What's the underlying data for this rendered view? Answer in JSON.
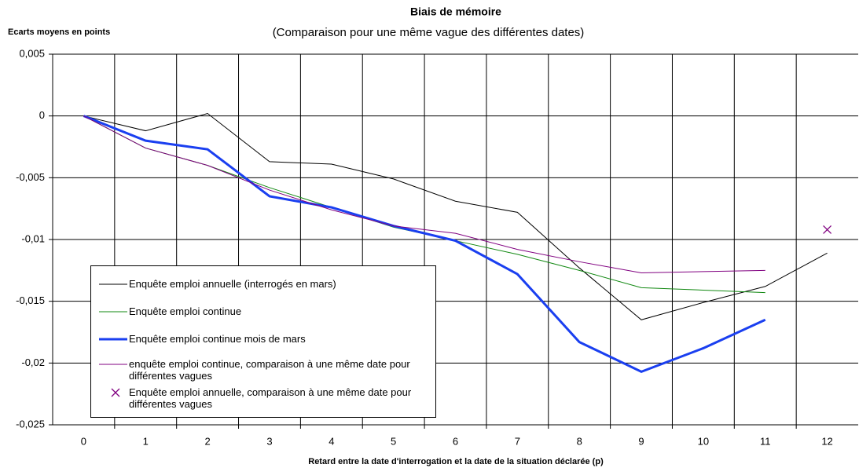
{
  "chart_data": {
    "type": "line",
    "title": "Biais de mémoire",
    "subtitle": "(Comparaison pour une même vague des différentes dates)",
    "y_label": "Ecarts moyens en points",
    "x_label": "Retard entre la date d'interrogation et la date de la situation déclarée (p)",
    "categories": [
      "0",
      "1",
      "2",
      "3",
      "4",
      "5",
      "6",
      "7",
      "8",
      "9",
      "10",
      "11",
      "12"
    ],
    "ylim": [
      -0.025,
      0.005
    ],
    "yticks": [
      {
        "value": -0.025,
        "label": "-0,025"
      },
      {
        "value": -0.02,
        "label": "-0,02"
      },
      {
        "value": -0.015,
        "label": "-0,015"
      },
      {
        "value": -0.01,
        "label": "-0,01"
      },
      {
        "value": -0.005,
        "label": "-0,005"
      },
      0,
      {
        "value": 0.005,
        "label": "0,005"
      }
    ],
    "grid": true,
    "series": [
      {
        "name": "Enquête emploi annuelle (interrogés en mars)",
        "color": "#000000",
        "width": 1,
        "values": [
          0,
          -0.0012,
          0.0002,
          -0.0037,
          -0.0039,
          -0.0051,
          -0.0069,
          -0.0078,
          -0.0123,
          -0.0165,
          -0.0151,
          -0.0138,
          -0.0111
        ]
      },
      {
        "name": "Enquête emploi continue",
        "color": "#118811",
        "width": 1,
        "values": [
          0,
          -0.0026,
          -0.004,
          -0.0058,
          -0.0074,
          -0.009,
          -0.0101,
          -0.0112,
          -0.0125,
          -0.0139,
          -0.0141,
          -0.0143,
          null
        ]
      },
      {
        "name": "Enquête emploi continue mois de mars",
        "color": "#1a3ff0",
        "width": 3,
        "values": [
          0,
          -0.002,
          -0.0027,
          -0.0065,
          -0.0074,
          -0.0089,
          -0.0101,
          -0.0128,
          -0.0183,
          -0.0207,
          -0.0188,
          -0.0165,
          null
        ]
      },
      {
        "name": "enquête emploi continue, comparaison à une même date pour différentes vagues",
        "color": "#800080",
        "width": 1,
        "values": [
          0,
          -0.0026,
          -0.004,
          -0.006,
          -0.0076,
          -0.0089,
          -0.0095,
          -0.0108,
          -0.0118,
          -0.0127,
          -0.0126,
          -0.0125,
          null
        ]
      },
      {
        "name": "Enquête emploi annuelle, comparaison à une même date pour différentes vagues",
        "color": "#800080",
        "marker": "x",
        "values": [
          null,
          null,
          null,
          null,
          null,
          null,
          null,
          null,
          null,
          null,
          null,
          null,
          -0.0092
        ]
      }
    ]
  }
}
